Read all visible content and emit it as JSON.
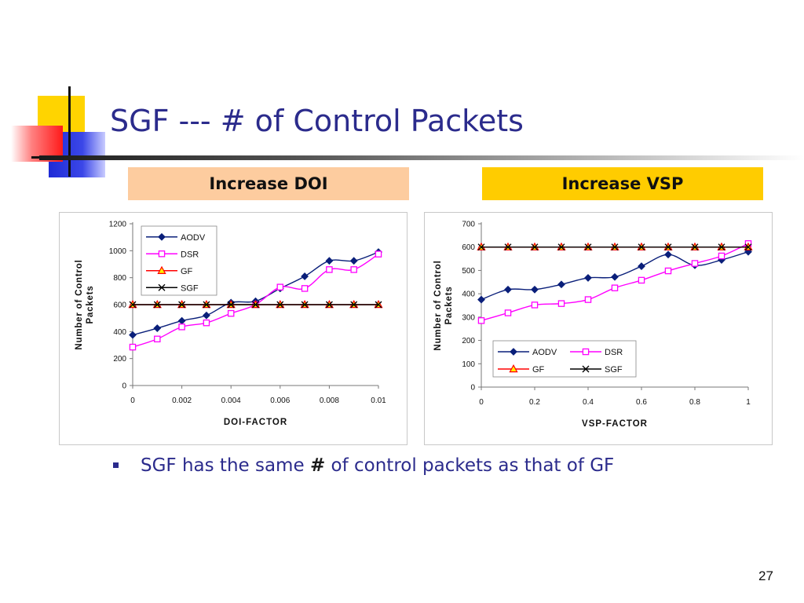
{
  "slide": {
    "title": "SGF --- # of Control Packets",
    "page_number": "27",
    "banners": {
      "left": "Increase DOI",
      "right": "Increase VSP"
    },
    "bullet": {
      "before": "SGF has the same ",
      "emphasis": "#",
      "after": " of control packets as that of GF"
    },
    "colors": {
      "title": "#2b2b8c",
      "banner_left": "#fdcc9f",
      "banner_right": "#ffcc00"
    }
  },
  "chart_data": [
    {
      "type": "line",
      "xlabel": "DOI-FACTOR",
      "ylabel": "Number of Control Packets",
      "x": [
        0,
        0.001,
        0.002,
        0.003,
        0.004,
        0.005,
        0.006,
        0.007,
        0.008,
        0.009,
        0.01
      ],
      "xticks": [
        "0",
        "0.002",
        "0.004",
        "0.006",
        "0.008",
        "0.01"
      ],
      "xlim": [
        0,
        0.01
      ],
      "yticks": [
        "0",
        "200",
        "400",
        "600",
        "800",
        "1000",
        "1200"
      ],
      "ylim": [
        0,
        1200
      ],
      "legend": "top-left, stacked",
      "series": [
        {
          "name": "AODV",
          "color": "#0a1f7a",
          "marker": "diamond",
          "values": [
            375,
            425,
            480,
            520,
            615,
            625,
            720,
            810,
            925,
            925,
            990
          ]
        },
        {
          "name": "DSR",
          "color": "#ff00ff",
          "marker": "square",
          "values": [
            285,
            345,
            435,
            465,
            535,
            600,
            730,
            720,
            860,
            860,
            975
          ]
        },
        {
          "name": "GF",
          "color": "#ff0000",
          "marker": "triangle",
          "values": [
            600,
            600,
            600,
            600,
            600,
            600,
            600,
            600,
            600,
            600,
            600
          ]
        },
        {
          "name": "SGF",
          "color": "#000000",
          "marker": "x",
          "values": [
            600,
            600,
            600,
            600,
            600,
            600,
            600,
            600,
            600,
            600,
            600
          ]
        }
      ]
    },
    {
      "type": "line",
      "xlabel": "VSP-FACTOR",
      "ylabel": "Number of Control Packets",
      "x": [
        0,
        0.1,
        0.2,
        0.3,
        0.4,
        0.5,
        0.6,
        0.7,
        0.8,
        0.9,
        1
      ],
      "xticks": [
        "0",
        "0.2",
        "0.4",
        "0.6",
        "0.8",
        "1"
      ],
      "xlim": [
        0,
        1
      ],
      "yticks": [
        "0",
        "100",
        "200",
        "300",
        "400",
        "500",
        "600",
        "700"
      ],
      "ylim": [
        0,
        700
      ],
      "legend": "bottom-center, 2x2 grid",
      "series": [
        {
          "name": "AODV",
          "color": "#0a1f7a",
          "marker": "diamond",
          "values": [
            375,
            418,
            418,
            440,
            468,
            472,
            518,
            568,
            522,
            545,
            580
          ]
        },
        {
          "name": "DSR",
          "color": "#ff00ff",
          "marker": "square",
          "values": [
            285,
            318,
            352,
            358,
            375,
            425,
            458,
            498,
            530,
            562,
            615
          ]
        },
        {
          "name": "GF",
          "color": "#ff0000",
          "marker": "triangle",
          "values": [
            600,
            600,
            600,
            600,
            600,
            600,
            600,
            600,
            600,
            600,
            600
          ]
        },
        {
          "name": "SGF",
          "color": "#000000",
          "marker": "x",
          "values": [
            600,
            600,
            600,
            600,
            600,
            600,
            600,
            600,
            600,
            600,
            600
          ]
        }
      ]
    }
  ]
}
